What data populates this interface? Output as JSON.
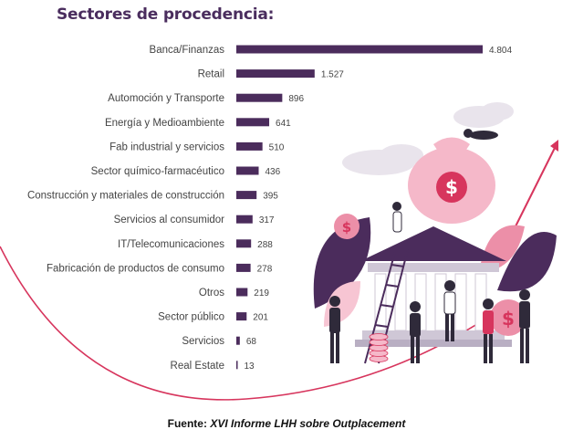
{
  "title": "Sectores de procedencia:",
  "source": {
    "prefix": "Fuente:",
    "name": "XVI Informe LHH sobre Outplacement"
  },
  "colors": {
    "bar": "#4b2c5c",
    "title": "#4a2d5e",
    "accent": "#d7355d",
    "label": "#444444"
  },
  "illustration": "finance-bank-illustration",
  "chart_data": {
    "type": "bar",
    "orientation": "horizontal",
    "title": "Sectores de procedencia:",
    "xlabel": "",
    "ylabel": "",
    "grid": false,
    "categories": [
      "Banca/Finanzas",
      "Retail",
      "Automoción y Transporte",
      "Energía y Medioambiente",
      "Fab industrial y servicios",
      "Sector químico-farmacéutico",
      "Construcción y materiales de construcción",
      "Servicios al consumidor",
      "IT/Telecomunicaciones",
      "Fabricación de productos de consumo",
      "Otros",
      "Sector público",
      "Servicios",
      "Real Estate"
    ],
    "values": [
      4804,
      1527,
      896,
      641,
      510,
      436,
      395,
      317,
      288,
      278,
      219,
      201,
      68,
      13
    ],
    "value_labels": [
      "4.804",
      "1.527",
      "896",
      "641",
      "510",
      "436",
      "395",
      "317",
      "288",
      "278",
      "219",
      "201",
      "68",
      "13"
    ]
  }
}
